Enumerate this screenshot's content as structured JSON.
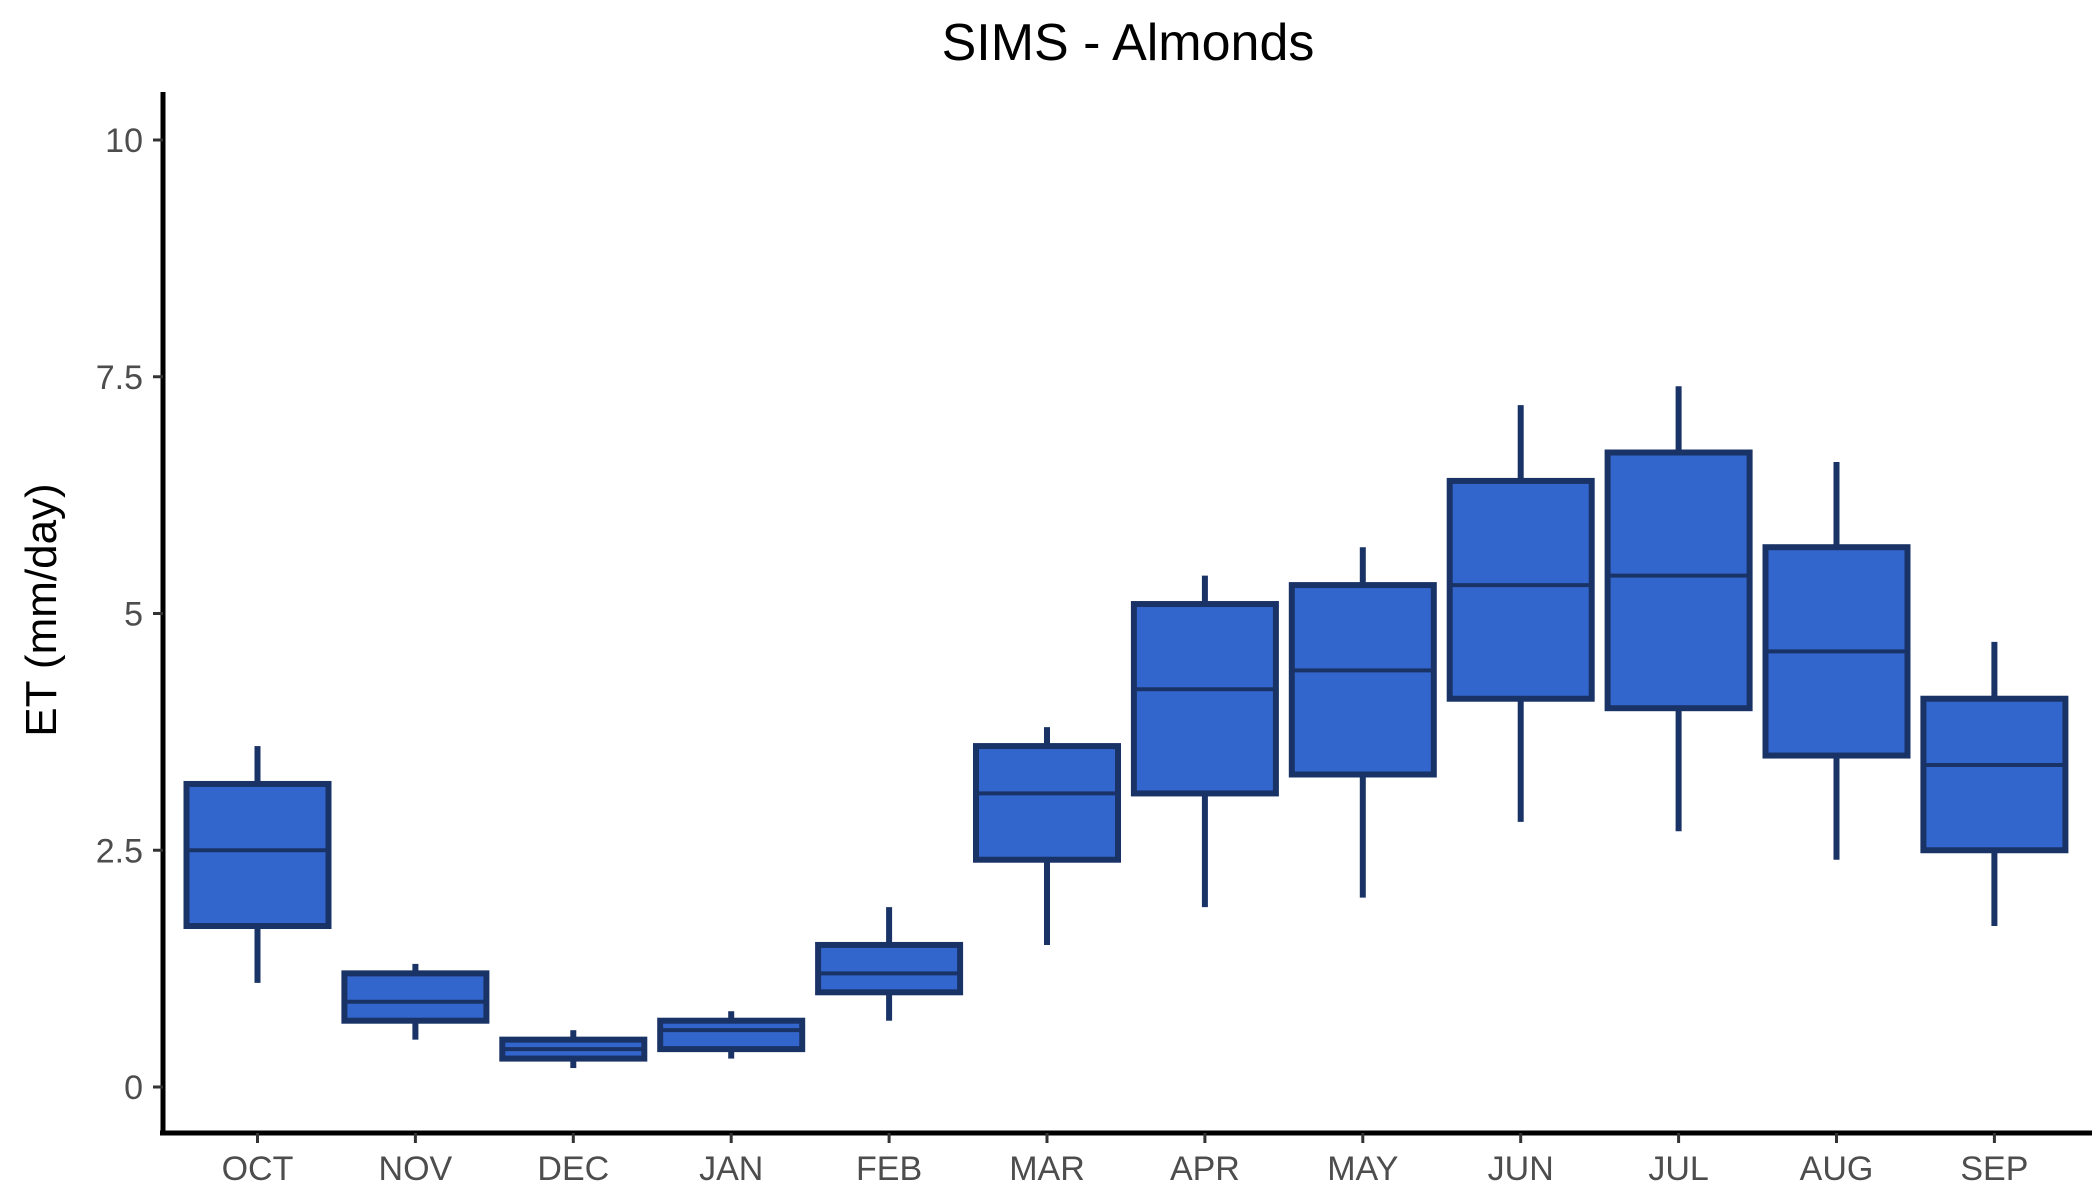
{
  "chart_data": {
    "type": "box",
    "title": "SIMS - Almonds",
    "xlabel": "",
    "ylabel": "ET (mm/day)",
    "ylim": [
      -0.5,
      10.5
    ],
    "yticks": [
      0,
      2.5,
      5,
      7.5,
      10
    ],
    "ytick_labels": [
      "0",
      "2.5",
      "5",
      "7.5",
      "10"
    ],
    "grid": false,
    "legend": "none",
    "colors": {
      "box_fill": "#3366cc",
      "box_stroke": "#1a3366",
      "axis": "#000000"
    },
    "categories": [
      "OCT",
      "NOV",
      "DEC",
      "JAN",
      "FEB",
      "MAR",
      "APR",
      "MAY",
      "JUN",
      "JUL",
      "AUG",
      "SEP"
    ],
    "boxes": [
      {
        "category": "OCT",
        "whisker_low": 1.1,
        "q1": 1.7,
        "median": 2.5,
        "q3": 3.2,
        "whisker_high": 3.6
      },
      {
        "category": "NOV",
        "whisker_low": 0.5,
        "q1": 0.7,
        "median": 0.9,
        "q3": 1.2,
        "whisker_high": 1.3
      },
      {
        "category": "DEC",
        "whisker_low": 0.2,
        "q1": 0.3,
        "median": 0.4,
        "q3": 0.5,
        "whisker_high": 0.6
      },
      {
        "category": "JAN",
        "whisker_low": 0.3,
        "q1": 0.4,
        "median": 0.6,
        "q3": 0.7,
        "whisker_high": 0.8
      },
      {
        "category": "FEB",
        "whisker_low": 0.7,
        "q1": 1.0,
        "median": 1.2,
        "q3": 1.5,
        "whisker_high": 1.9
      },
      {
        "category": "MAR",
        "whisker_low": 1.5,
        "q1": 2.4,
        "median": 3.1,
        "q3": 3.6,
        "whisker_high": 3.8
      },
      {
        "category": "APR",
        "whisker_low": 1.9,
        "q1": 3.1,
        "median": 4.2,
        "q3": 5.1,
        "whisker_high": 5.4
      },
      {
        "category": "MAY",
        "whisker_low": 2.0,
        "q1": 3.3,
        "median": 4.4,
        "q3": 5.3,
        "whisker_high": 5.7
      },
      {
        "category": "JUN",
        "whisker_low": 2.8,
        "q1": 4.1,
        "median": 5.3,
        "q3": 6.4,
        "whisker_high": 7.2
      },
      {
        "category": "JUL",
        "whisker_low": 2.7,
        "q1": 4.0,
        "median": 5.4,
        "q3": 6.7,
        "whisker_high": 7.4
      },
      {
        "category": "AUG",
        "whisker_low": 2.4,
        "q1": 3.5,
        "median": 4.6,
        "q3": 5.7,
        "whisker_high": 6.6
      },
      {
        "category": "SEP",
        "whisker_low": 1.7,
        "q1": 2.5,
        "median": 3.4,
        "q3": 4.1,
        "whisker_high": 4.7
      }
    ]
  }
}
